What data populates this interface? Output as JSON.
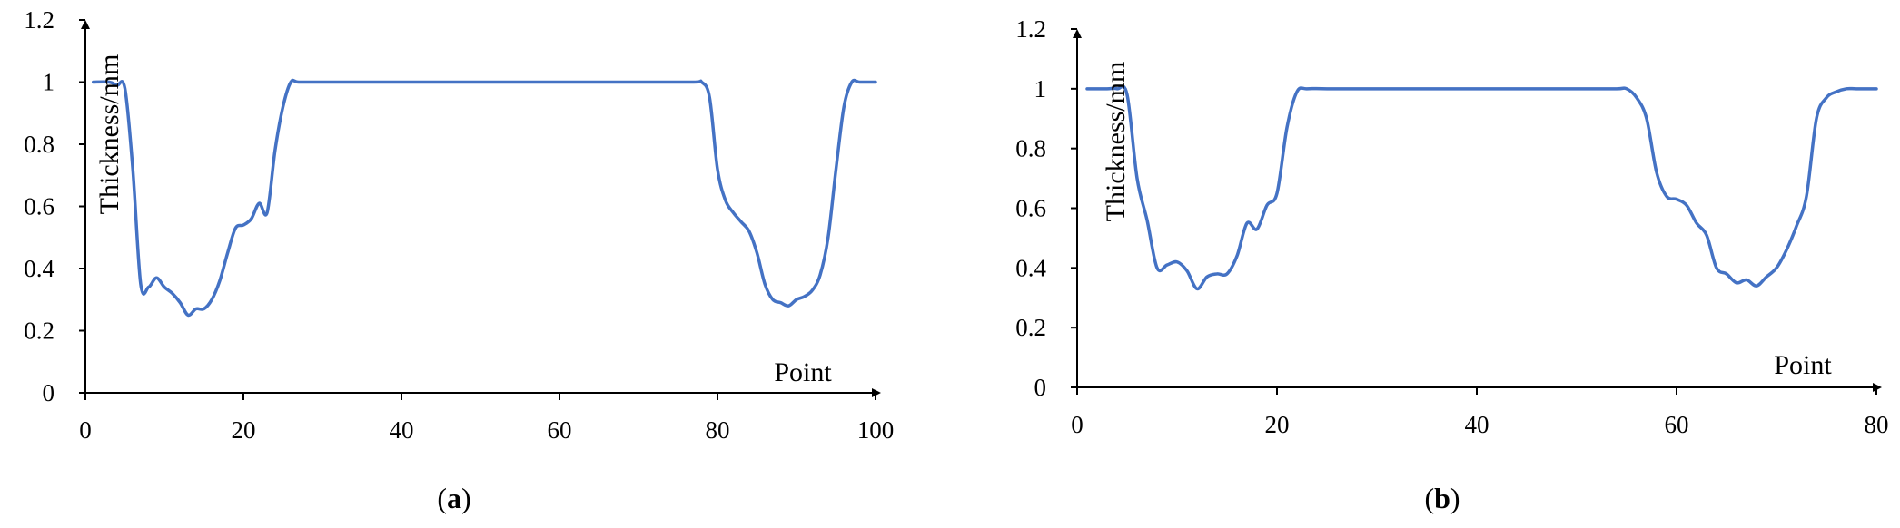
{
  "charts": [
    {
      "label_open": "(",
      "label_letter": "a",
      "label_close": ")",
      "chart_data": {
        "type": "line",
        "xlabel": "Point",
        "ylabel": "Thickness/mm",
        "xlim": [
          0,
          100
        ],
        "ylim": [
          0,
          1.2
        ],
        "x_ticks": [
          "0",
          "20",
          "40",
          "60",
          "80",
          "100"
        ],
        "y_ticks": [
          "0",
          "0.2",
          "0.4",
          "0.6",
          "0.8",
          "1",
          "1.2"
        ],
        "grid": false,
        "color": "#4472C4",
        "series": [
          {
            "x": [
              1,
              3,
              4,
              5,
              6,
              7,
              8,
              9,
              10,
              11,
              12,
              13,
              14,
              15,
              16,
              17,
              18,
              19,
              20,
              21,
              22,
              23,
              24,
              25,
              26,
              27,
              30,
              40,
              50,
              60,
              70,
              77,
              78,
              79,
              80,
              81,
              82,
              83,
              84,
              85,
              86,
              87,
              88,
              89,
              90,
              91,
              92,
              93,
              94,
              95,
              96,
              97,
              98,
              100
            ],
            "y": [
              1.0,
              1.0,
              0.99,
              0.98,
              0.72,
              0.35,
              0.34,
              0.37,
              0.34,
              0.32,
              0.29,
              0.25,
              0.27,
              0.27,
              0.3,
              0.36,
              0.45,
              0.53,
              0.54,
              0.56,
              0.61,
              0.58,
              0.78,
              0.92,
              1.0,
              1.0,
              1.0,
              1.0,
              1.0,
              1.0,
              1.0,
              1.0,
              1.0,
              0.95,
              0.72,
              0.62,
              0.58,
              0.55,
              0.52,
              0.45,
              0.35,
              0.3,
              0.29,
              0.28,
              0.3,
              0.31,
              0.33,
              0.38,
              0.5,
              0.72,
              0.92,
              1.0,
              1.0,
              1.0
            ]
          }
        ]
      }
    },
    {
      "label_open": "(",
      "label_letter": "b",
      "label_close": ")",
      "chart_data": {
        "type": "line",
        "xlabel": "Point",
        "ylabel": "Thickness/mm",
        "xlim": [
          0,
          80
        ],
        "ylim": [
          0,
          1.2
        ],
        "x_ticks": [
          "0",
          "20",
          "40",
          "60",
          "80"
        ],
        "y_ticks": [
          "0",
          "0.2",
          "0.4",
          "0.6",
          "0.8",
          "1",
          "1.2"
        ],
        "grid": false,
        "color": "#4472C4",
        "series": [
          {
            "x": [
              1,
              3,
              4,
              5,
              6,
              7,
              8,
              9,
              10,
              11,
              12,
              13,
              14,
              15,
              16,
              17,
              18,
              19,
              20,
              21,
              22,
              23,
              25,
              30,
              40,
              50,
              54,
              55,
              56,
              57,
              58,
              59,
              60,
              61,
              62,
              63,
              64,
              65,
              66,
              67,
              68,
              69,
              70,
              71,
              72,
              73,
              74,
              75,
              76,
              77,
              78,
              80
            ],
            "y": [
              1.0,
              1.0,
              1.0,
              0.98,
              0.7,
              0.56,
              0.4,
              0.41,
              0.42,
              0.39,
              0.33,
              0.37,
              0.38,
              0.38,
              0.44,
              0.55,
              0.53,
              0.61,
              0.65,
              0.87,
              0.99,
              1.0,
              1.0,
              1.0,
              1.0,
              1.0,
              1.0,
              1.0,
              0.97,
              0.9,
              0.72,
              0.64,
              0.63,
              0.61,
              0.55,
              0.51,
              0.4,
              0.38,
              0.35,
              0.36,
              0.34,
              0.37,
              0.4,
              0.46,
              0.54,
              0.64,
              0.9,
              0.97,
              0.99,
              1.0,
              1.0,
              1.0
            ]
          }
        ]
      }
    }
  ]
}
